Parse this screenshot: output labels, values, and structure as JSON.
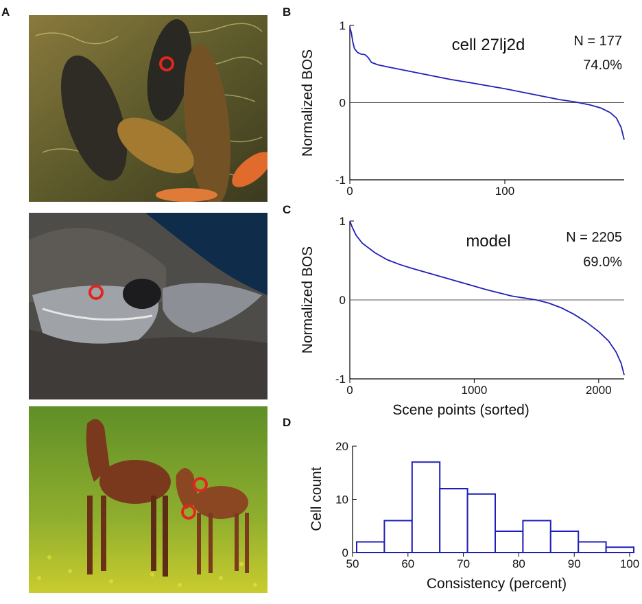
{
  "panel_labels": {
    "a": "A",
    "b": "B",
    "c": "C",
    "d": "D"
  },
  "photos": [
    {
      "subject": "fish-photo",
      "colors": {
        "bg": "#7c6a33",
        "accent": "#c9a04a"
      }
    },
    {
      "subject": "bird-photo",
      "colors": {
        "bg": "#4d4b48",
        "accent": "#0d2a44"
      }
    },
    {
      "subject": "horse-photo",
      "colors": {
        "bg": "#6f9a2e",
        "accent": "#7b3a1e"
      }
    }
  ],
  "marker_color": "#e2261e",
  "line_color": "#1f1fb8",
  "chart_data": [
    {
      "panel": "B",
      "type": "line",
      "annotation": "cell 27lj2d",
      "n_label": "N = 177",
      "pct_label": "74.0%",
      "ylabel": "Normalized BOS",
      "xlabel": "",
      "xlim": [
        0,
        177
      ],
      "ylim": [
        -1,
        1
      ],
      "xticks": [
        0,
        100
      ],
      "yticks": [
        1,
        0,
        -1
      ],
      "x": [
        0,
        1,
        2,
        3,
        5,
        7,
        10,
        12,
        14,
        18,
        25,
        35,
        50,
        65,
        80,
        100,
        115,
        125,
        135,
        145,
        155,
        162,
        168,
        172,
        175,
        177
      ],
      "y": [
        0.98,
        0.9,
        0.78,
        0.7,
        0.65,
        0.63,
        0.62,
        0.58,
        0.52,
        0.49,
        0.46,
        0.42,
        0.36,
        0.3,
        0.25,
        0.18,
        0.12,
        0.08,
        0.04,
        0.01,
        -0.03,
        -0.07,
        -0.13,
        -0.2,
        -0.32,
        -0.48
      ]
    },
    {
      "panel": "C",
      "type": "line",
      "annotation": "model",
      "n_label": "N = 2205",
      "pct_label": "69.0%",
      "ylabel": "Normalized BOS",
      "xlabel": "Scene points (sorted)",
      "xlim": [
        0,
        2205
      ],
      "ylim": [
        -1,
        1
      ],
      "xticks": [
        0,
        1000,
        2000
      ],
      "yticks": [
        1,
        0,
        -1
      ],
      "x": [
        0,
        20,
        50,
        100,
        200,
        300,
        400,
        500,
        700,
        900,
        1100,
        1300,
        1500,
        1600,
        1700,
        1800,
        1900,
        2000,
        2080,
        2140,
        2180,
        2205
      ],
      "y": [
        1.0,
        0.92,
        0.82,
        0.72,
        0.6,
        0.51,
        0.45,
        0.4,
        0.31,
        0.22,
        0.13,
        0.05,
        0.0,
        -0.04,
        -0.1,
        -0.18,
        -0.28,
        -0.4,
        -0.52,
        -0.66,
        -0.8,
        -0.95
      ]
    },
    {
      "panel": "D",
      "type": "bar",
      "ylabel": "Cell count",
      "xlabel": "Consistency (percent)",
      "xlim": [
        50,
        100
      ],
      "ylim": [
        0,
        20
      ],
      "xticks": [
        50,
        60,
        70,
        80,
        90,
        100
      ],
      "yticks": [
        20,
        10,
        0
      ],
      "bin_edges": [
        50,
        55,
        60,
        65,
        70,
        75,
        80,
        85,
        90,
        95,
        100
      ],
      "values": [
        2,
        6,
        17,
        12,
        11,
        4,
        6,
        4,
        2,
        1
      ]
    }
  ]
}
